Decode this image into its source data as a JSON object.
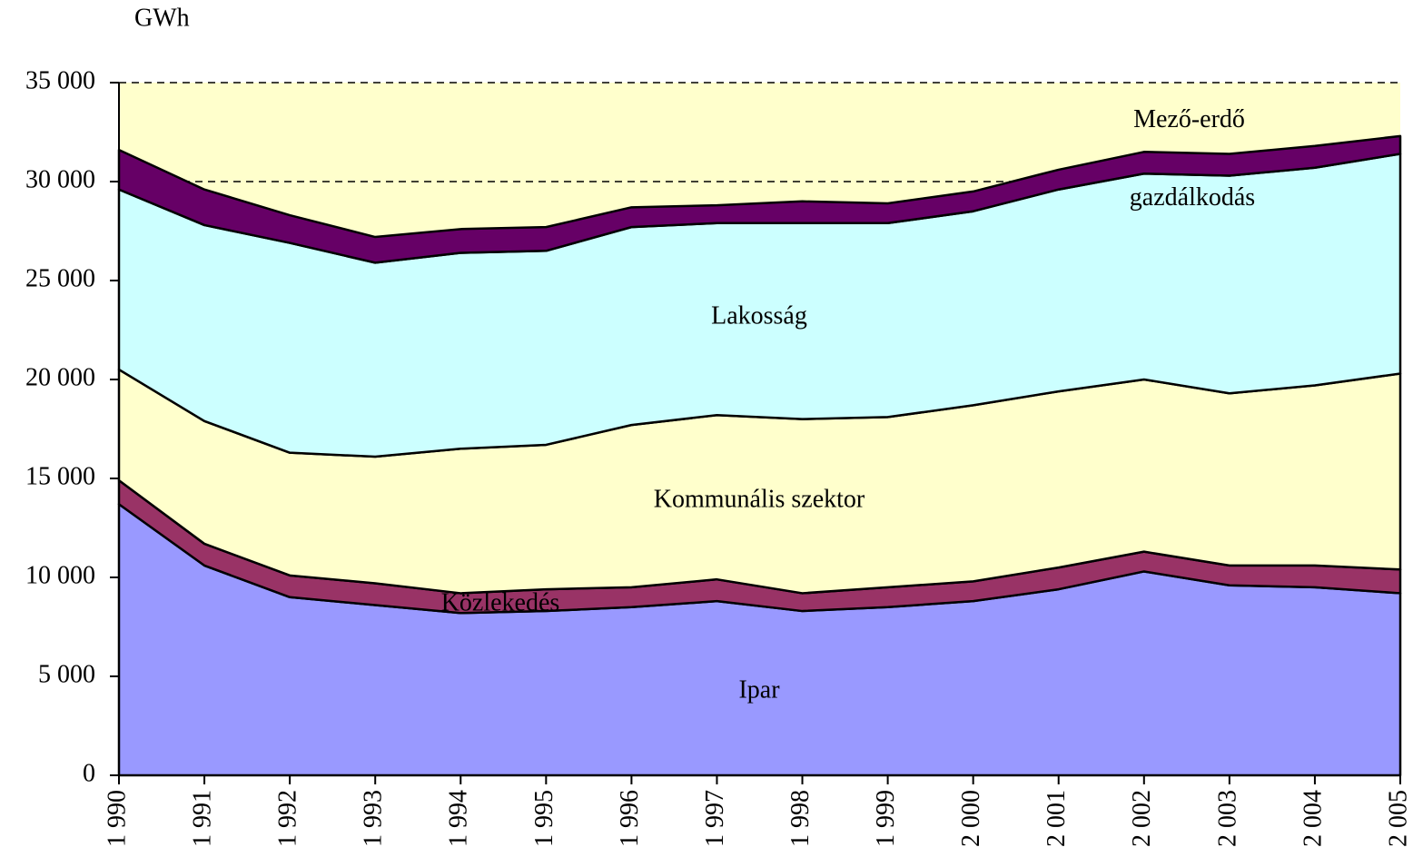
{
  "chart_data": {
    "type": "stacked_area",
    "y_label": "GWh",
    "categories": [
      "1 990",
      "1 991",
      "1 992",
      "1 993",
      "1 994",
      "1 995",
      "1 996",
      "1 997",
      "1 998",
      "1 999",
      "2 000",
      "2 001",
      "2 002",
      "2 003",
      "2 004",
      "2 005"
    ],
    "series": [
      {
        "name": "Ipar",
        "color": "#9999ff",
        "values": [
          13700,
          10600,
          9000,
          8600,
          8200,
          8300,
          8500,
          8800,
          8300,
          8500,
          8800,
          9400,
          10300,
          9600,
          9500,
          9200
        ]
      },
      {
        "name": "Közlekedés",
        "color": "#993366",
        "values": [
          1200,
          1100,
          1100,
          1100,
          1000,
          1100,
          1000,
          1100,
          900,
          1000,
          1000,
          1100,
          1000,
          1000,
          1100,
          1200
        ]
      },
      {
        "name": "Kommunális szektor",
        "color": "#ffffcc",
        "values": [
          5600,
          6200,
          6200,
          6400,
          7300,
          7300,
          8200,
          8300,
          8800,
          8600,
          8900,
          8900,
          8700,
          8700,
          9100,
          9900
        ]
      },
      {
        "name": "Lakosság",
        "color": "#ccffff",
        "values": [
          9100,
          9900,
          10600,
          9800,
          9900,
          9800,
          10000,
          9700,
          9900,
          9800,
          9800,
          10200,
          10400,
          11000,
          11000,
          11100
        ]
      },
      {
        "name": "Mező-erdő gazdálkodás",
        "color": "#660066",
        "values": [
          2000,
          1800,
          1400,
          1300,
          1200,
          1200,
          1000,
          900,
          1100,
          1000,
          1000,
          1000,
          1100,
          1100,
          1100,
          900
        ]
      }
    ],
    "ylim": [
      0,
      35000
    ],
    "yticks": [
      0,
      {
        "value": 5000,
        "label": "5 000"
      },
      {
        "value": 10000,
        "label": "10 000"
      },
      {
        "value": 15000,
        "label": "15 000"
      },
      {
        "value": 20000,
        "label": "20 000"
      },
      {
        "value": 25000,
        "label": "25 000"
      },
      {
        "value": 30000,
        "label": "30 000"
      },
      {
        "value": 35000,
        "label": "35 000"
      }
    ],
    "grid": true,
    "background": "#ffffcc"
  }
}
